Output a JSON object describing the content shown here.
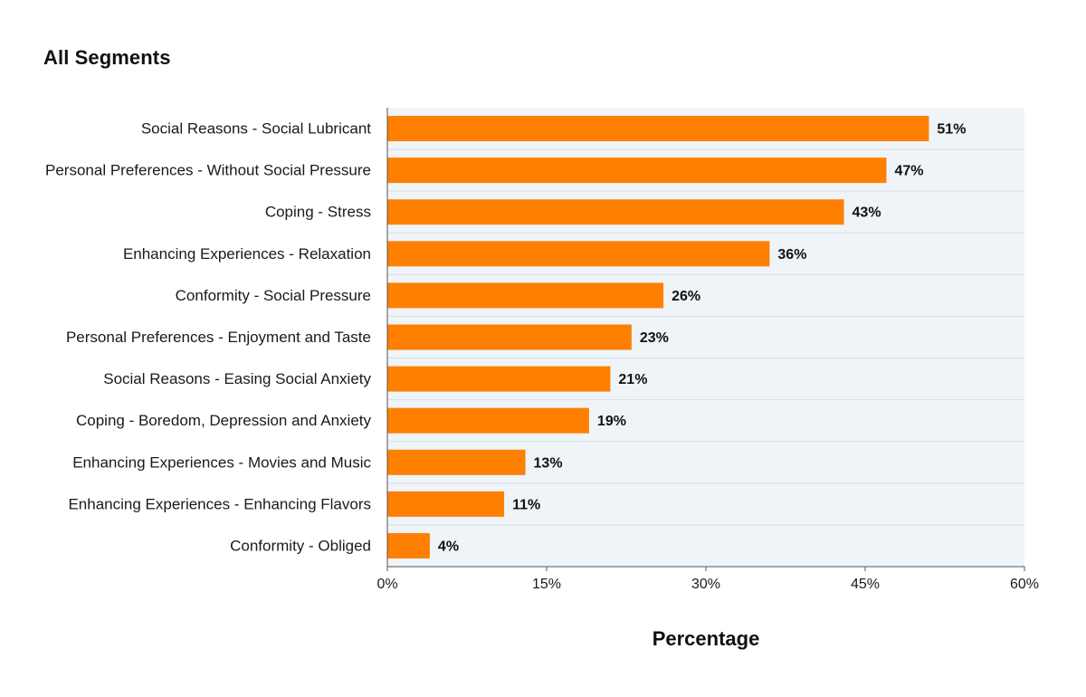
{
  "chart_data": {
    "type": "bar",
    "orientation": "horizontal",
    "title": "All Segments",
    "xlabel": "Percentage",
    "ylabel": "",
    "xlim": [
      0,
      60
    ],
    "x_ticks": [
      "0%",
      "15%",
      "30%",
      "45%",
      "60%"
    ],
    "x_tick_values": [
      0,
      15,
      30,
      45,
      60
    ],
    "grid": true,
    "categories": [
      "Social Reasons - Social Lubricant",
      "Personal Preferences - Without Social Pressure",
      "Coping - Stress",
      "Enhancing Experiences - Relaxation",
      "Conformity - Social Pressure",
      "Personal Preferences - Enjoyment and Taste",
      "Social Reasons - Easing Social Anxiety",
      "Coping - Boredom, Depression and Anxiety",
      "Enhancing Experiences - Movies and Music",
      "Enhancing Experiences - Enhancing Flavors",
      "Conformity - Obliged"
    ],
    "values": [
      51,
      47,
      43,
      36,
      26,
      23,
      21,
      19,
      13,
      11,
      4
    ],
    "data_labels": [
      "51%",
      "47%",
      "43%",
      "36%",
      "26%",
      "23%",
      "21%",
      "19%",
      "13%",
      "11%",
      "4%"
    ],
    "colors": {
      "bar": "#ff7f00",
      "plot_background": "#eff4f8",
      "gridline": "#d6dde4",
      "axis": "#555555"
    }
  }
}
